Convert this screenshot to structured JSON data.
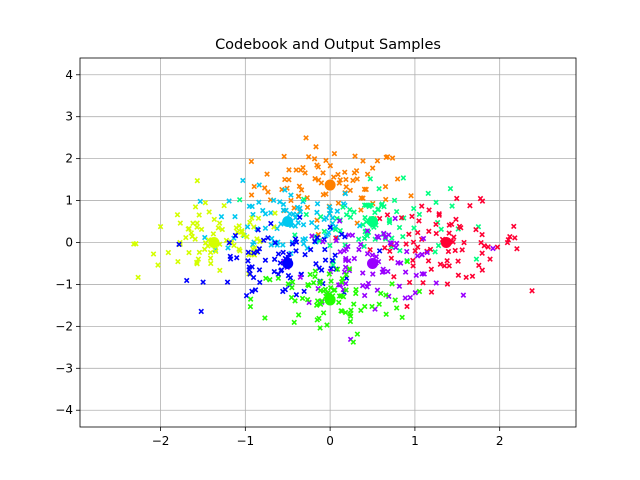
{
  "chart_data": {
    "type": "scatter",
    "title": "Codebook and Output Samples",
    "xlabel": "",
    "ylabel": "",
    "xlim": [
      -2.95,
      2.9
    ],
    "ylim": [
      -4.4,
      4.4
    ],
    "xticks": [
      -2,
      -1,
      0,
      1,
      2
    ],
    "yticks": [
      -4,
      -3,
      -2,
      -1,
      0,
      1,
      2,
      3,
      4
    ],
    "xtick_labels": [
      "−2",
      "−1",
      "0",
      "1",
      "2"
    ],
    "ytick_labels": [
      "−4",
      "−3",
      "−2",
      "−1",
      "0",
      "1",
      "2",
      "3",
      "4"
    ],
    "grid": true,
    "colors": [
      "#ff8000",
      "#00c8f0",
      "#00ff80",
      "#ff0033",
      "#d4ff00",
      "#0000ff",
      "#9900ff",
      "#22ff00"
    ],
    "codebook": [
      {
        "x": 0.0,
        "y": 1.37
      },
      {
        "x": -0.5,
        "y": 0.5
      },
      {
        "x": 0.5,
        "y": 0.5
      },
      {
        "x": 1.37,
        "y": 0.0
      },
      {
        "x": -1.37,
        "y": 0.0
      },
      {
        "x": -0.5,
        "y": -0.5
      },
      {
        "x": 0.5,
        "y": -0.5
      },
      {
        "x": 0.0,
        "y": -1.37
      }
    ],
    "sample_spread": [
      0.45,
      0.45,
      0.45,
      0.45,
      0.45,
      0.45,
      0.45,
      0.45
    ],
    "samples_per_cluster": 80
  }
}
